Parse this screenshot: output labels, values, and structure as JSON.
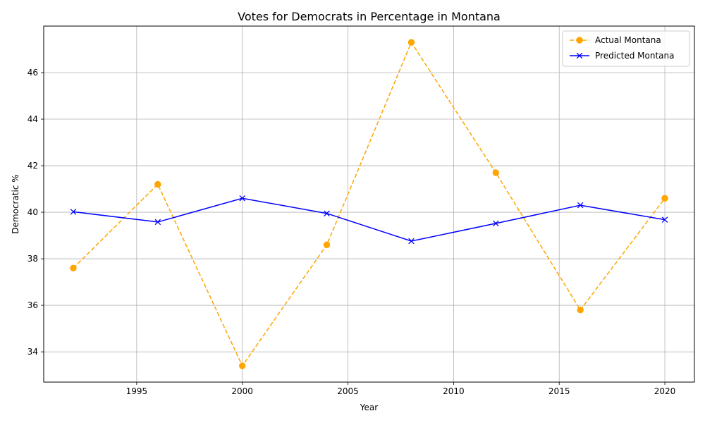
{
  "chart_data": {
    "type": "line",
    "title": "Votes for Democrats in Percentage in Montana",
    "xlabel": "Year",
    "ylabel": "Democratic %",
    "xlim": [
      1990.6,
      2021.4
    ],
    "ylim": [
      32.7,
      48.0
    ],
    "xticks": [
      1995,
      2000,
      2005,
      2010,
      2015,
      2020
    ],
    "yticks": [
      34,
      36,
      38,
      40,
      42,
      44,
      46
    ],
    "grid": true,
    "legend_position": "top-right",
    "x": [
      1992,
      1996,
      2000,
      2004,
      2008,
      2012,
      2016,
      2020
    ],
    "series": [
      {
        "name": "Actual Montana",
        "color": "#ffa500",
        "line_style": "dashed",
        "marker": "circle",
        "values": [
          37.6,
          41.2,
          33.4,
          38.6,
          47.3,
          41.7,
          35.8,
          40.6
        ]
      },
      {
        "name": "Predicted Montana",
        "color": "#0000ff",
        "line_style": "solid",
        "marker": "x",
        "values": [
          40.02,
          39.58,
          40.6,
          39.95,
          38.76,
          39.52,
          40.3,
          39.68
        ]
      }
    ]
  }
}
